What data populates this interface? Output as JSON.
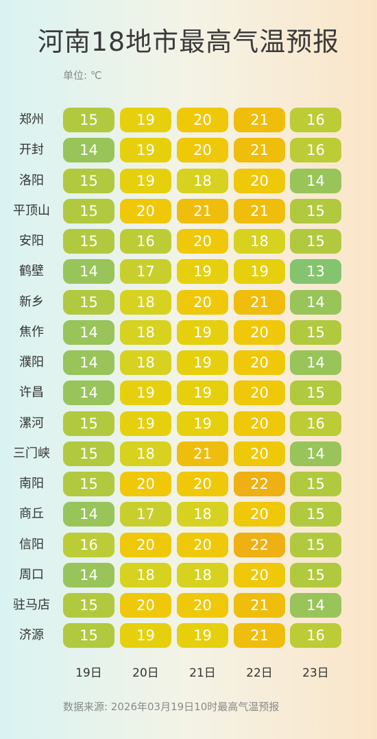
{
  "header": {
    "title": "河南18地市最高气温预报",
    "unit": "单位: ℃"
  },
  "footer": {
    "source": "数据来源: 2026年03月19日10时最高气温预报"
  },
  "colors": {
    "13": "#84c46e",
    "14": "#98c45a",
    "15": "#b1c93f",
    "16": "#bccc36",
    "17": "#c8cf2c",
    "18": "#d6d21f",
    "19": "#e6d00d",
    "20": "#efc80a",
    "21": "#efbd0c",
    "22": "#eeb012"
  },
  "chart_data": {
    "type": "table",
    "title": "河南18地市最高气温预报",
    "unit": "单位: ℃",
    "columns": [
      "19日",
      "20日",
      "21日",
      "22日",
      "23日"
    ],
    "rows": [
      {
        "city": "郑州",
        "values": [
          15,
          19,
          20,
          21,
          16
        ]
      },
      {
        "city": "开封",
        "values": [
          14,
          19,
          20,
          21,
          16
        ]
      },
      {
        "city": "洛阳",
        "values": [
          15,
          19,
          18,
          20,
          14
        ]
      },
      {
        "city": "平顶山",
        "values": [
          15,
          20,
          21,
          21,
          15
        ]
      },
      {
        "city": "安阳",
        "values": [
          15,
          16,
          20,
          18,
          15
        ]
      },
      {
        "city": "鹤壁",
        "values": [
          14,
          17,
          19,
          19,
          13
        ]
      },
      {
        "city": "新乡",
        "values": [
          15,
          18,
          20,
          21,
          14
        ]
      },
      {
        "city": "焦作",
        "values": [
          14,
          18,
          19,
          20,
          15
        ]
      },
      {
        "city": "濮阳",
        "values": [
          14,
          18,
          19,
          20,
          14
        ]
      },
      {
        "city": "许昌",
        "values": [
          14,
          19,
          19,
          20,
          15
        ]
      },
      {
        "city": "漯河",
        "values": [
          15,
          19,
          19,
          20,
          16
        ]
      },
      {
        "city": "三门峡",
        "values": [
          15,
          18,
          21,
          20,
          14
        ]
      },
      {
        "city": "南阳",
        "values": [
          15,
          20,
          20,
          22,
          15
        ]
      },
      {
        "city": "商丘",
        "values": [
          14,
          17,
          18,
          20,
          15
        ]
      },
      {
        "city": "信阳",
        "values": [
          16,
          20,
          20,
          22,
          15
        ]
      },
      {
        "city": "周口",
        "values": [
          14,
          18,
          18,
          20,
          15
        ]
      },
      {
        "city": "驻马店",
        "values": [
          15,
          20,
          20,
          21,
          14
        ]
      },
      {
        "city": "济源",
        "values": [
          15,
          19,
          19,
          21,
          16
        ]
      }
    ]
  }
}
